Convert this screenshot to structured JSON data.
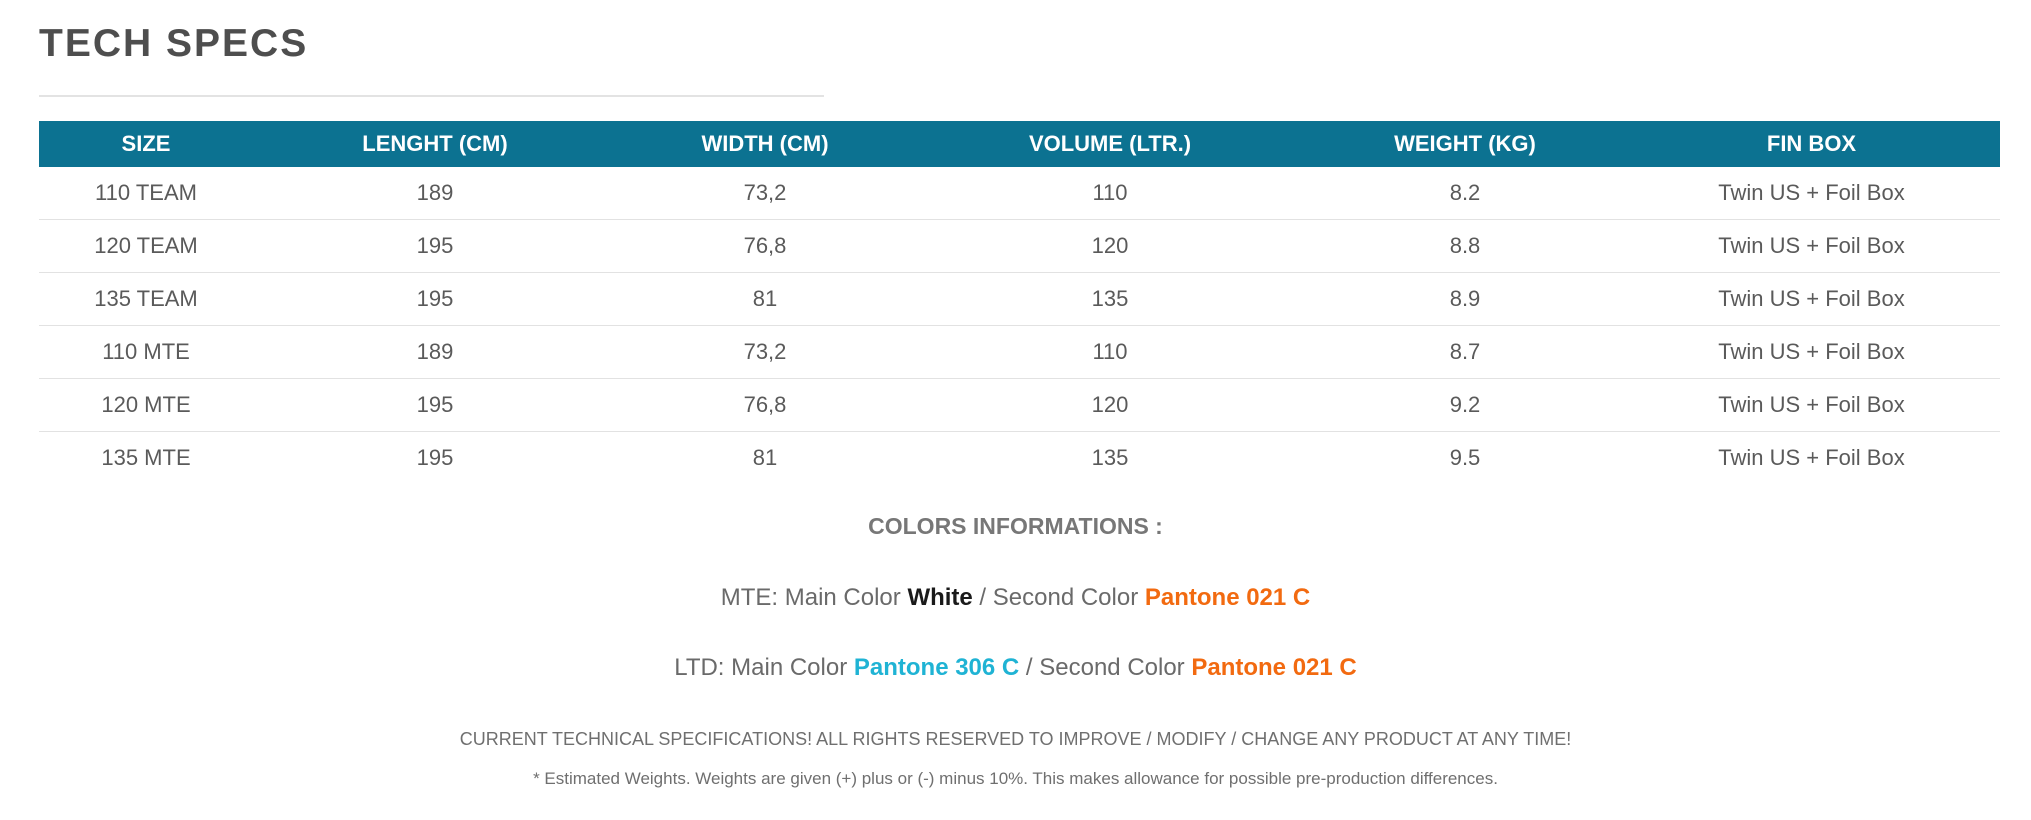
{
  "page": {
    "title": "TECH SPECS"
  },
  "specs_table": {
    "headers": [
      "SIZE",
      "LENGHT (CM)",
      "WIDTH (CM)",
      "VOLUME (LTR.)",
      "WEIGHT (KG)",
      "FIN BOX"
    ],
    "rows": [
      [
        "110 TEAM",
        "189",
        "73,2",
        "110",
        "8.2",
        "Twin US + Foil Box"
      ],
      [
        "120 TEAM",
        "195",
        "76,8",
        "120",
        "8.8",
        "Twin US + Foil Box"
      ],
      [
        "135 TEAM",
        "195",
        "81",
        "135",
        "8.9",
        "Twin US + Foil Box"
      ],
      [
        "110 MTE",
        "189",
        "73,2",
        "110",
        "8.7",
        "Twin US + Foil Box"
      ],
      [
        "120 MTE",
        "195",
        "76,8",
        "120",
        "9.2",
        "Twin US + Foil Box"
      ],
      [
        "135 MTE",
        "195",
        "81",
        "135",
        "9.5",
        "Twin US + Foil Box"
      ]
    ]
  },
  "colors_info": {
    "heading": "COLORS INFORMATIONS :",
    "lines": [
      {
        "prefix": "MTE: Main Color ",
        "main_color": "White",
        "main_color_hex": "#1a1a1a",
        "separator": " / Second Color ",
        "second_color": "Pantone 021 C",
        "second_color_hex": "#f26a10"
      },
      {
        "prefix": "LTD: Main Color ",
        "main_color": "Pantone 306 C",
        "main_color_hex": "#1fb3d4",
        "separator": " / Second Color ",
        "second_color": "Pantone 021 C",
        "second_color_hex": "#f26a10"
      }
    ]
  },
  "disclaimer": "CURRENT TECHNICAL SPECIFICATIONS! ALL RIGHTS RESERVED TO IMPROVE / MODIFY / CHANGE ANY PRODUCT AT ANY TIME!",
  "footnote": "* Estimated Weights. Weights are given (+) plus or (-) minus 10%. This makes allowance for possible pre-production differences.",
  "theme": {
    "header_bg": "#0c7291",
    "header_text": "#ffffff"
  }
}
